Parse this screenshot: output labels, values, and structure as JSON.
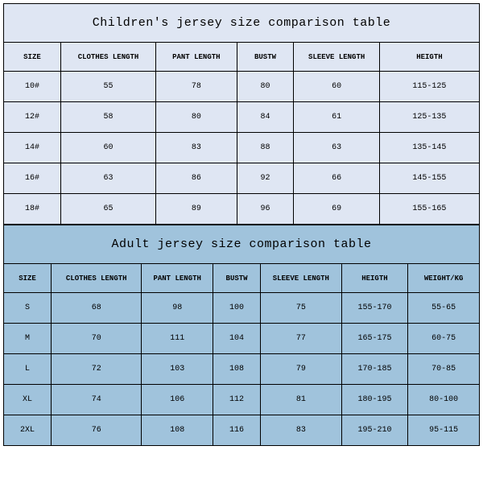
{
  "children_table": {
    "title": "Children's jersey size comparison table",
    "title_bg": "#dfe6f3",
    "row_bg": "#dfe6f3",
    "border_color": "#000000",
    "title_fontsize": 15,
    "header_fontsize": 9,
    "cell_fontsize": 10,
    "font_family": "Courier New",
    "columns": [
      "SIZE",
      "CLOTHES LENGTH",
      "PANT LENGTH",
      "BUSTW",
      "SLEEVE LENGTH",
      "HEIGTH"
    ],
    "col_widths_pct": [
      12,
      20,
      17,
      12,
      18,
      21
    ],
    "rows": [
      [
        "10#",
        "55",
        "78",
        "80",
        "60",
        "115-125"
      ],
      [
        "12#",
        "58",
        "80",
        "84",
        "61",
        "125-135"
      ],
      [
        "14#",
        "60",
        "83",
        "88",
        "63",
        "135-145"
      ],
      [
        "16#",
        "63",
        "86",
        "92",
        "66",
        "145-155"
      ],
      [
        "18#",
        "65",
        "89",
        "96",
        "69",
        "155-165"
      ]
    ]
  },
  "adult_table": {
    "title": "Adult jersey size comparison table",
    "title_bg": "#a0c3dc",
    "row_bg": "#a0c3dc",
    "border_color": "#000000",
    "title_fontsize": 15,
    "header_fontsize": 9,
    "cell_fontsize": 10,
    "font_family": "Courier New",
    "columns": [
      "SIZE",
      "CLOTHES LENGTH",
      "PANT LENGTH",
      "BUSTW",
      "SLEEVE LENGTH",
      "HEIGTH",
      "WEIGHT/KG"
    ],
    "col_widths_pct": [
      10,
      19,
      15,
      10,
      17,
      14,
      15
    ],
    "rows": [
      [
        "S",
        "68",
        "98",
        "100",
        "75",
        "155-170",
        "55-65"
      ],
      [
        "M",
        "70",
        "111",
        "104",
        "77",
        "165-175",
        "60-75"
      ],
      [
        "L",
        "72",
        "103",
        "108",
        "79",
        "170-185",
        "70-85"
      ],
      [
        "XL",
        "74",
        "106",
        "112",
        "81",
        "180-195",
        "80-100"
      ],
      [
        "2XL",
        "76",
        "108",
        "116",
        "83",
        "195-210",
        "95-115"
      ]
    ]
  }
}
